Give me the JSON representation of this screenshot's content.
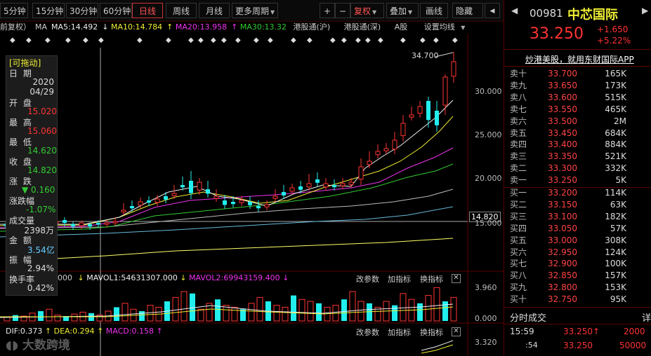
{
  "toolbar": {
    "periods": [
      "5分钟",
      "15分钟",
      "30分钟",
      "60分钟"
    ],
    "active": "日线",
    "others": [
      "周线",
      "月线"
    ],
    "more": "更多周期",
    "plus": "+",
    "minus": "−",
    "fq": "复权",
    "overlay": "叠加",
    "draw": "画线",
    "hide": "隐藏"
  },
  "indicators": {
    "prefix": "前复权）",
    "ma": "MA",
    "ma5": "MA5:14.492",
    "ma10": "MA10:14.784",
    "ma20": "MA20:13.958",
    "ma30": "MA30:13.32",
    "hk_sh": "港股通(沪)",
    "hk_sz": "港股通(深)",
    "a_share": "A股",
    "setting": "设置均线"
  },
  "axis": {
    "high_label": "34.700",
    "p30": "30.000",
    "p25": "25.000",
    "p20": "20.000",
    "cur": "14.820",
    "p15": "15.000",
    "vol_top": "3.960",
    "vol_zero": "0.000",
    "macd_top": "3.320"
  },
  "popup": {
    "title": "[可拖动]",
    "date_label": "日 期",
    "year": "2020",
    "md": "04/29",
    "open_label": "开 盘",
    "open": "15.020",
    "high_label": "最 高",
    "high": "15.060",
    "low_label": "最 低",
    "low": "14.620",
    "close_label": "收 盘",
    "close": "14.820",
    "chg_label": "涨 跌",
    "chg": "▼ 0.160",
    "pct_label": "涨跌幅",
    "pct": "-1.07%",
    "vol_label": "成交量",
    "vol": "2398万",
    "amt_label": "金 额",
    "amt": "3.54亿",
    "amp_label": "振 幅",
    "amp": "2.94%",
    "turn_label": "换手率",
    "turn": "0.42%"
  },
  "volume_row": {
    "left": "000",
    "vmavol1": "MAVOL1:54631307.000",
    "vmavol2": "MAVOL2:69943159.400",
    "params": "改参数",
    "add": "加指标",
    "switch": "换指标"
  },
  "macd_row": {
    "dif": "DIF:0.373",
    "dea": "DEA:0.294",
    "macd": "MACD:0.158",
    "params": "改参数",
    "add": "加指标",
    "switch": "换指标"
  },
  "watermark": "大数跨境",
  "quote": {
    "code": "00981",
    "name": "中芯国际",
    "price": "33.250",
    "change": "+1.650",
    "pct": "+5.22%",
    "ad": "炒港美股，就用东财国际APP",
    "asks": [
      {
        "label": "卖十",
        "price": "33.700",
        "vol": "165K"
      },
      {
        "label": "卖九",
        "price": "33.650",
        "vol": "173K"
      },
      {
        "label": "卖八",
        "price": "33.600",
        "vol": "515K"
      },
      {
        "label": "卖七",
        "price": "33.550",
        "vol": "465K"
      },
      {
        "label": "卖六",
        "price": "33.500",
        "vol": "2M"
      },
      {
        "label": "卖五",
        "price": "33.450",
        "vol": "684K"
      },
      {
        "label": "卖四",
        "price": "33.400",
        "vol": "884K"
      },
      {
        "label": "卖三",
        "price": "33.350",
        "vol": "521K"
      },
      {
        "label": "卖二",
        "price": "33.300",
        "vol": "332K"
      },
      {
        "label": "卖一",
        "price": "33.250",
        "vol": "5K"
      }
    ],
    "bids": [
      {
        "label": "买一",
        "price": "33.200",
        "vol": "114K"
      },
      {
        "label": "买二",
        "price": "33.150",
        "vol": "63K"
      },
      {
        "label": "买三",
        "price": "33.100",
        "vol": "182K"
      },
      {
        "label": "买四",
        "price": "33.050",
        "vol": "57K"
      },
      {
        "label": "买五",
        "price": "33.000",
        "vol": "308K"
      },
      {
        "label": "买六",
        "price": "32.950",
        "vol": "124K"
      },
      {
        "label": "买七",
        "price": "32.900",
        "vol": "100K"
      },
      {
        "label": "买八",
        "price": "32.850",
        "vol": "157K"
      },
      {
        "label": "买九",
        "price": "32.800",
        "vol": "153K"
      },
      {
        "label": "买十",
        "price": "32.750",
        "vol": "95K"
      }
    ],
    "ticks_title": "分时成交",
    "ticks_more": "详",
    "ticks": [
      {
        "time": "15:59",
        "price": "33.250↑",
        "vol": "2000"
      },
      {
        "time": ":54",
        "price": "33.250",
        "vol": "50000"
      }
    ]
  }
}
